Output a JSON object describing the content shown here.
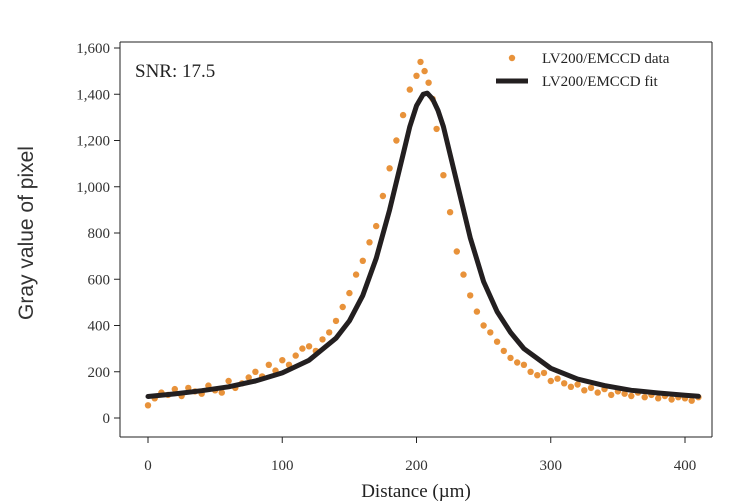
{
  "chart_data": {
    "type": "scatter",
    "title": "",
    "xlabel": "Distance (µm)",
    "ylabel": "Gray value of pixel",
    "xlim": [
      -20,
      415
    ],
    "ylim": [
      -80,
      1620
    ],
    "xticks": [
      0,
      100,
      200,
      300,
      400
    ],
    "xtick_labels": [
      "0",
      "100",
      "200",
      "300",
      "400"
    ],
    "yticks": [
      0,
      200,
      400,
      600,
      800,
      1000,
      1200,
      1400,
      1600
    ],
    "ytick_labels": [
      "0",
      "200",
      "400",
      "600",
      "800",
      "1,000",
      "1,200",
      "1,400",
      "1,600"
    ],
    "annotation": "SNR: 17.5",
    "legend_position": "top-right",
    "grid": false,
    "series": [
      {
        "name": "LV200/EMCCD data",
        "kind": "scatter",
        "color": "#E8923A",
        "x": [
          0,
          5,
          10,
          15,
          20,
          25,
          30,
          35,
          40,
          45,
          50,
          55,
          60,
          65,
          70,
          75,
          80,
          85,
          90,
          95,
          100,
          105,
          110,
          115,
          120,
          125,
          130,
          135,
          140,
          145,
          150,
          155,
          160,
          165,
          170,
          175,
          180,
          185,
          190,
          195,
          200,
          203,
          206,
          209,
          212,
          215,
          220,
          225,
          230,
          235,
          240,
          245,
          250,
          255,
          260,
          265,
          270,
          275,
          280,
          285,
          290,
          295,
          300,
          305,
          310,
          315,
          320,
          325,
          330,
          335,
          340,
          345,
          350,
          355,
          360,
          365,
          370,
          375,
          380,
          385,
          390,
          395,
          400,
          405,
          410
        ],
        "y": [
          55,
          85,
          110,
          100,
          125,
          95,
          130,
          115,
          105,
          140,
          120,
          110,
          160,
          130,
          150,
          175,
          200,
          180,
          230,
          205,
          250,
          230,
          270,
          300,
          310,
          290,
          340,
          370,
          420,
          480,
          540,
          620,
          680,
          760,
          830,
          960,
          1080,
          1200,
          1310,
          1420,
          1480,
          1540,
          1500,
          1450,
          1380,
          1250,
          1050,
          890,
          720,
          620,
          530,
          460,
          400,
          370,
          330,
          290,
          260,
          240,
          230,
          200,
          185,
          195,
          160,
          170,
          150,
          135,
          145,
          120,
          130,
          110,
          125,
          100,
          115,
          105,
          95,
          110,
          90,
          100,
          85,
          95,
          80,
          90,
          85,
          75,
          90
        ]
      },
      {
        "name": "LV200/EMCCD fit",
        "kind": "line",
        "color": "#231F20",
        "x": [
          0,
          20,
          40,
          60,
          80,
          100,
          120,
          140,
          150,
          160,
          170,
          180,
          190,
          195,
          200,
          205,
          208,
          212,
          216,
          220,
          230,
          240,
          250,
          260,
          270,
          280,
          300,
          320,
          340,
          360,
          380,
          400,
          410
        ],
        "y": [
          93,
          104,
          118,
          135,
          160,
          195,
          250,
          345,
          420,
          530,
          690,
          900,
          1140,
          1260,
          1350,
          1400,
          1405,
          1380,
          1330,
          1260,
          1020,
          780,
          590,
          460,
          370,
          300,
          215,
          168,
          140,
          120,
          108,
          98,
          94
        ]
      }
    ]
  }
}
